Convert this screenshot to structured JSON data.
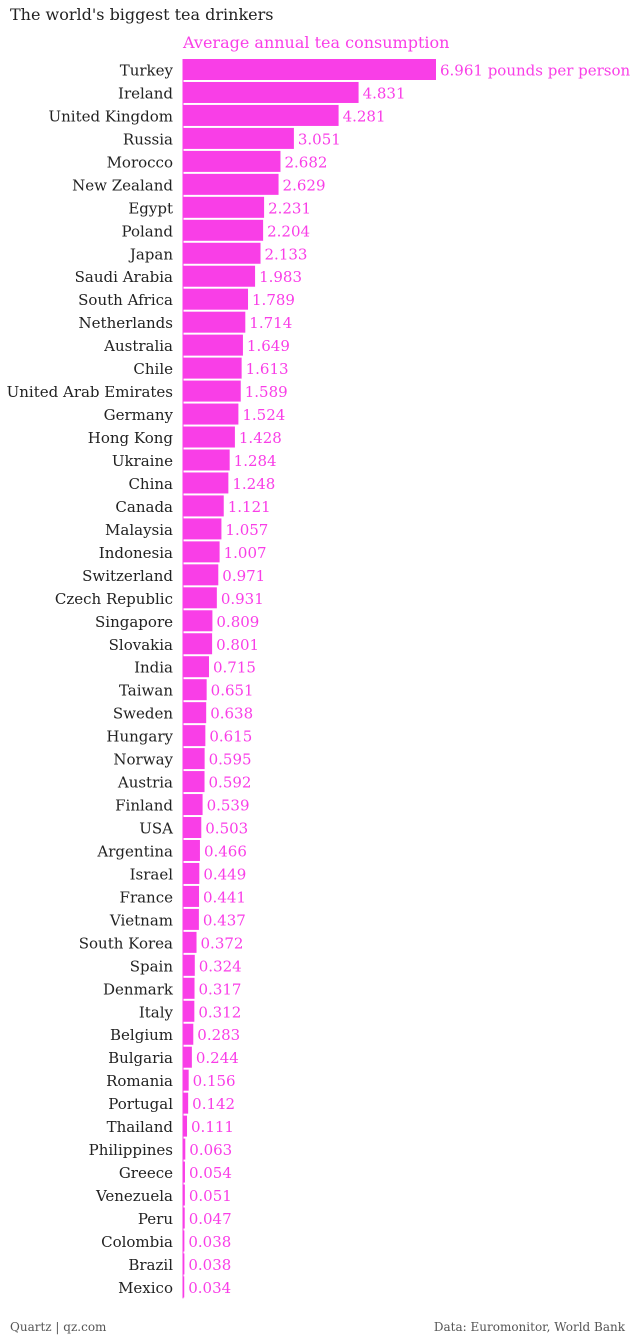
{
  "colors": {
    "accent": "#f93ee7",
    "text": "#222222",
    "muted": "#555555"
  },
  "header": {
    "title": "The world's biggest tea drinkers",
    "series_label": "Average annual tea consumption"
  },
  "footer": {
    "credit": "Quartz | qz.com",
    "source": "Data: Euromonitor, World Bank"
  },
  "chart_data": {
    "type": "bar",
    "orientation": "horizontal",
    "title": "The world's biggest tea drinkers",
    "series": [
      {
        "name": "Average annual tea consumption",
        "values": [
          6.961,
          4.831,
          4.281,
          3.051,
          2.682,
          2.629,
          2.231,
          2.204,
          2.133,
          1.983,
          1.789,
          1.714,
          1.649,
          1.613,
          1.589,
          1.524,
          1.428,
          1.284,
          1.248,
          1.121,
          1.057,
          1.007,
          0.971,
          0.931,
          0.809,
          0.801,
          0.715,
          0.651,
          0.638,
          0.615,
          0.595,
          0.592,
          0.539,
          0.503,
          0.466,
          0.449,
          0.441,
          0.437,
          0.372,
          0.324,
          0.317,
          0.312,
          0.283,
          0.244,
          0.156,
          0.142,
          0.111,
          0.063,
          0.054,
          0.051,
          0.047,
          0.038,
          0.038,
          0.034
        ]
      }
    ],
    "categories": [
      "Turkey",
      "Ireland",
      "United Kingdom",
      "Russia",
      "Morocco",
      "New Zealand",
      "Egypt",
      "Poland",
      "Japan",
      "Saudi Arabia",
      "South Africa",
      "Netherlands",
      "Australia",
      "Chile",
      "United Arab Emirates",
      "Germany",
      "Hong Kong",
      "Ukraine",
      "China",
      "Canada",
      "Malaysia",
      "Indonesia",
      "Switzerland",
      "Czech Republic",
      "Singapore",
      "Slovakia",
      "India",
      "Taiwan",
      "Sweden",
      "Hungary",
      "Norway",
      "Austria",
      "Finland",
      "USA",
      "Argentina",
      "Israel",
      "France",
      "Vietnam",
      "South Korea",
      "Spain",
      "Denmark",
      "Italy",
      "Belgium",
      "Bulgaria",
      "Romania",
      "Portugal",
      "Thailand",
      "Philippines",
      "Greece",
      "Venezuela",
      "Peru",
      "Colombia",
      "Brazil",
      "Mexico"
    ],
    "value_labels": [
      "6.961 pounds per person",
      "4.831",
      "4.281",
      "3.051",
      "2.682",
      "2.629",
      "2.231",
      "2.204",
      "2.133",
      "1.983",
      "1.789",
      "1.714",
      "1.649",
      "1.613",
      "1.589",
      "1.524",
      "1.428",
      "1.284",
      "1.248",
      "1.121",
      "1.057",
      "1.007",
      "0.971",
      "0.931",
      "0.809",
      "0.801",
      "0.715",
      "0.651",
      "0.638",
      "0.615",
      "0.595",
      "0.592",
      "0.539",
      "0.503",
      "0.466",
      "0.449",
      "0.441",
      "0.437",
      "0.372",
      "0.324",
      "0.317",
      "0.312",
      "0.283",
      "0.244",
      "0.156",
      "0.142",
      "0.111",
      "0.063",
      "0.054",
      "0.051",
      "0.047",
      "0.038",
      "0.038",
      "0.034"
    ],
    "xlim": [
      0,
      6.961
    ],
    "grid": false,
    "legend": "none"
  }
}
